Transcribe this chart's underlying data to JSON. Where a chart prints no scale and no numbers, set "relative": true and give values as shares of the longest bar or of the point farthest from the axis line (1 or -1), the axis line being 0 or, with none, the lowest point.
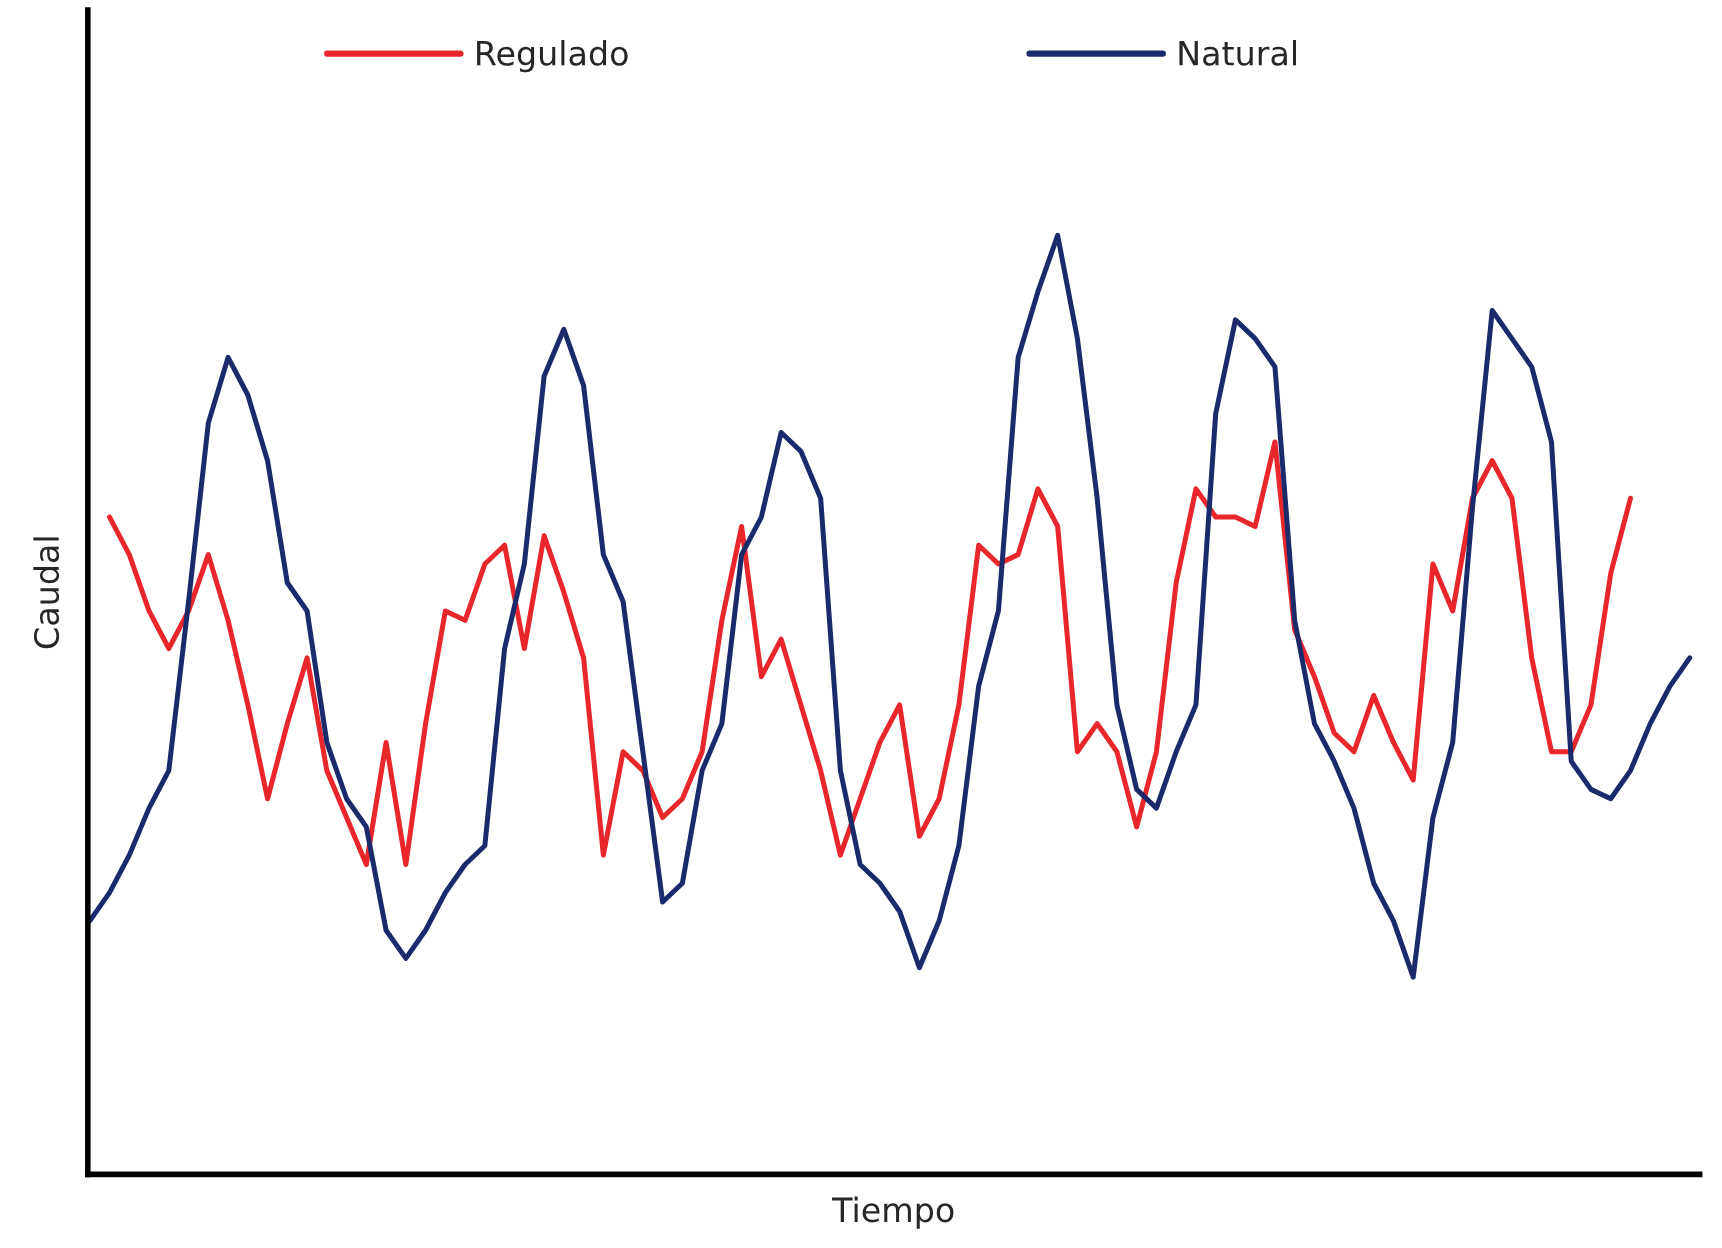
{
  "chart_data": {
    "type": "line",
    "relative": true,
    "xlabel": "Tiempo",
    "ylabel": "Caudal",
    "legend": "top",
    "marker": "none",
    "line_style": "solid",
    "categories": [
      null,
      null,
      null,
      null,
      null,
      null,
      null,
      null,
      null,
      null,
      null,
      null,
      null,
      null,
      null,
      null,
      null,
      null,
      null,
      null,
      null,
      null,
      null,
      null,
      null,
      null,
      null,
      null,
      null,
      null,
      null,
      null,
      null,
      null,
      null,
      null,
      null,
      null,
      null,
      null,
      null,
      null,
      null,
      null,
      null,
      null,
      null,
      null,
      null,
      null,
      null,
      null,
      null,
      null,
      null,
      null,
      null,
      null,
      null,
      null,
      null,
      null,
      null,
      null,
      null,
      null,
      null,
      null,
      null,
      null,
      null,
      null,
      null,
      null,
      null,
      null,
      null,
      null,
      null,
      null,
      null,
      null
    ],
    "series": [
      {
        "name": "Regulado",
        "color": "#e8262b",
        "values": [
          null,
          0.7,
          0.66,
          0.6,
          0.56,
          0.6,
          0.66,
          0.59,
          0.5,
          0.4,
          0.48,
          0.55,
          0.43,
          0.38,
          0.33,
          0.46,
          0.33,
          0.48,
          0.6,
          0.59,
          0.65,
          0.67,
          0.56,
          0.68,
          0.62,
          0.55,
          0.34,
          0.45,
          0.43,
          0.38,
          0.4,
          0.45,
          0.59,
          0.69,
          0.53,
          0.57,
          0.5,
          0.43,
          0.34,
          0.4,
          0.46,
          0.5,
          0.36,
          0.4,
          0.5,
          0.67,
          0.65,
          0.66,
          0.73,
          0.69,
          0.45,
          0.48,
          0.45,
          0.37,
          0.45,
          0.63,
          0.73,
          0.7,
          0.7,
          0.69,
          0.78,
          0.58,
          0.53,
          0.47,
          0.45,
          0.51,
          0.46,
          0.42,
          0.65,
          0.6,
          0.72,
          0.76,
          0.72,
          0.55,
          0.45,
          0.45,
          0.5,
          0.64,
          0.72,
          null,
          null,
          null
        ]
      },
      {
        "name": "Natural",
        "color": "#1b2a6b",
        "values": [
          0.27,
          0.3,
          0.34,
          0.39,
          0.43,
          0.61,
          0.8,
          0.87,
          0.83,
          0.76,
          0.63,
          0.6,
          0.46,
          0.4,
          0.37,
          0.26,
          0.23,
          0.26,
          0.3,
          0.33,
          0.35,
          0.56,
          0.65,
          0.85,
          0.9,
          0.84,
          0.66,
          0.61,
          0.45,
          0.29,
          0.31,
          0.43,
          0.48,
          0.66,
          0.7,
          0.79,
          0.77,
          0.72,
          0.43,
          0.33,
          0.31,
          0.28,
          0.22,
          0.27,
          0.35,
          0.52,
          0.6,
          0.87,
          0.94,
          1,
          0.89,
          0.72,
          0.5,
          0.41,
          0.39,
          0.45,
          0.5,
          0.81,
          0.91,
          0.89,
          0.86,
          0.59,
          0.48,
          0.44,
          0.39,
          0.31,
          0.27,
          0.21,
          0.38,
          0.46,
          0.71,
          0.92,
          0.89,
          0.86,
          0.78,
          0.44,
          0.41,
          0.4,
          0.43,
          0.48,
          0.52,
          0.55
        ]
      }
    ]
  }
}
